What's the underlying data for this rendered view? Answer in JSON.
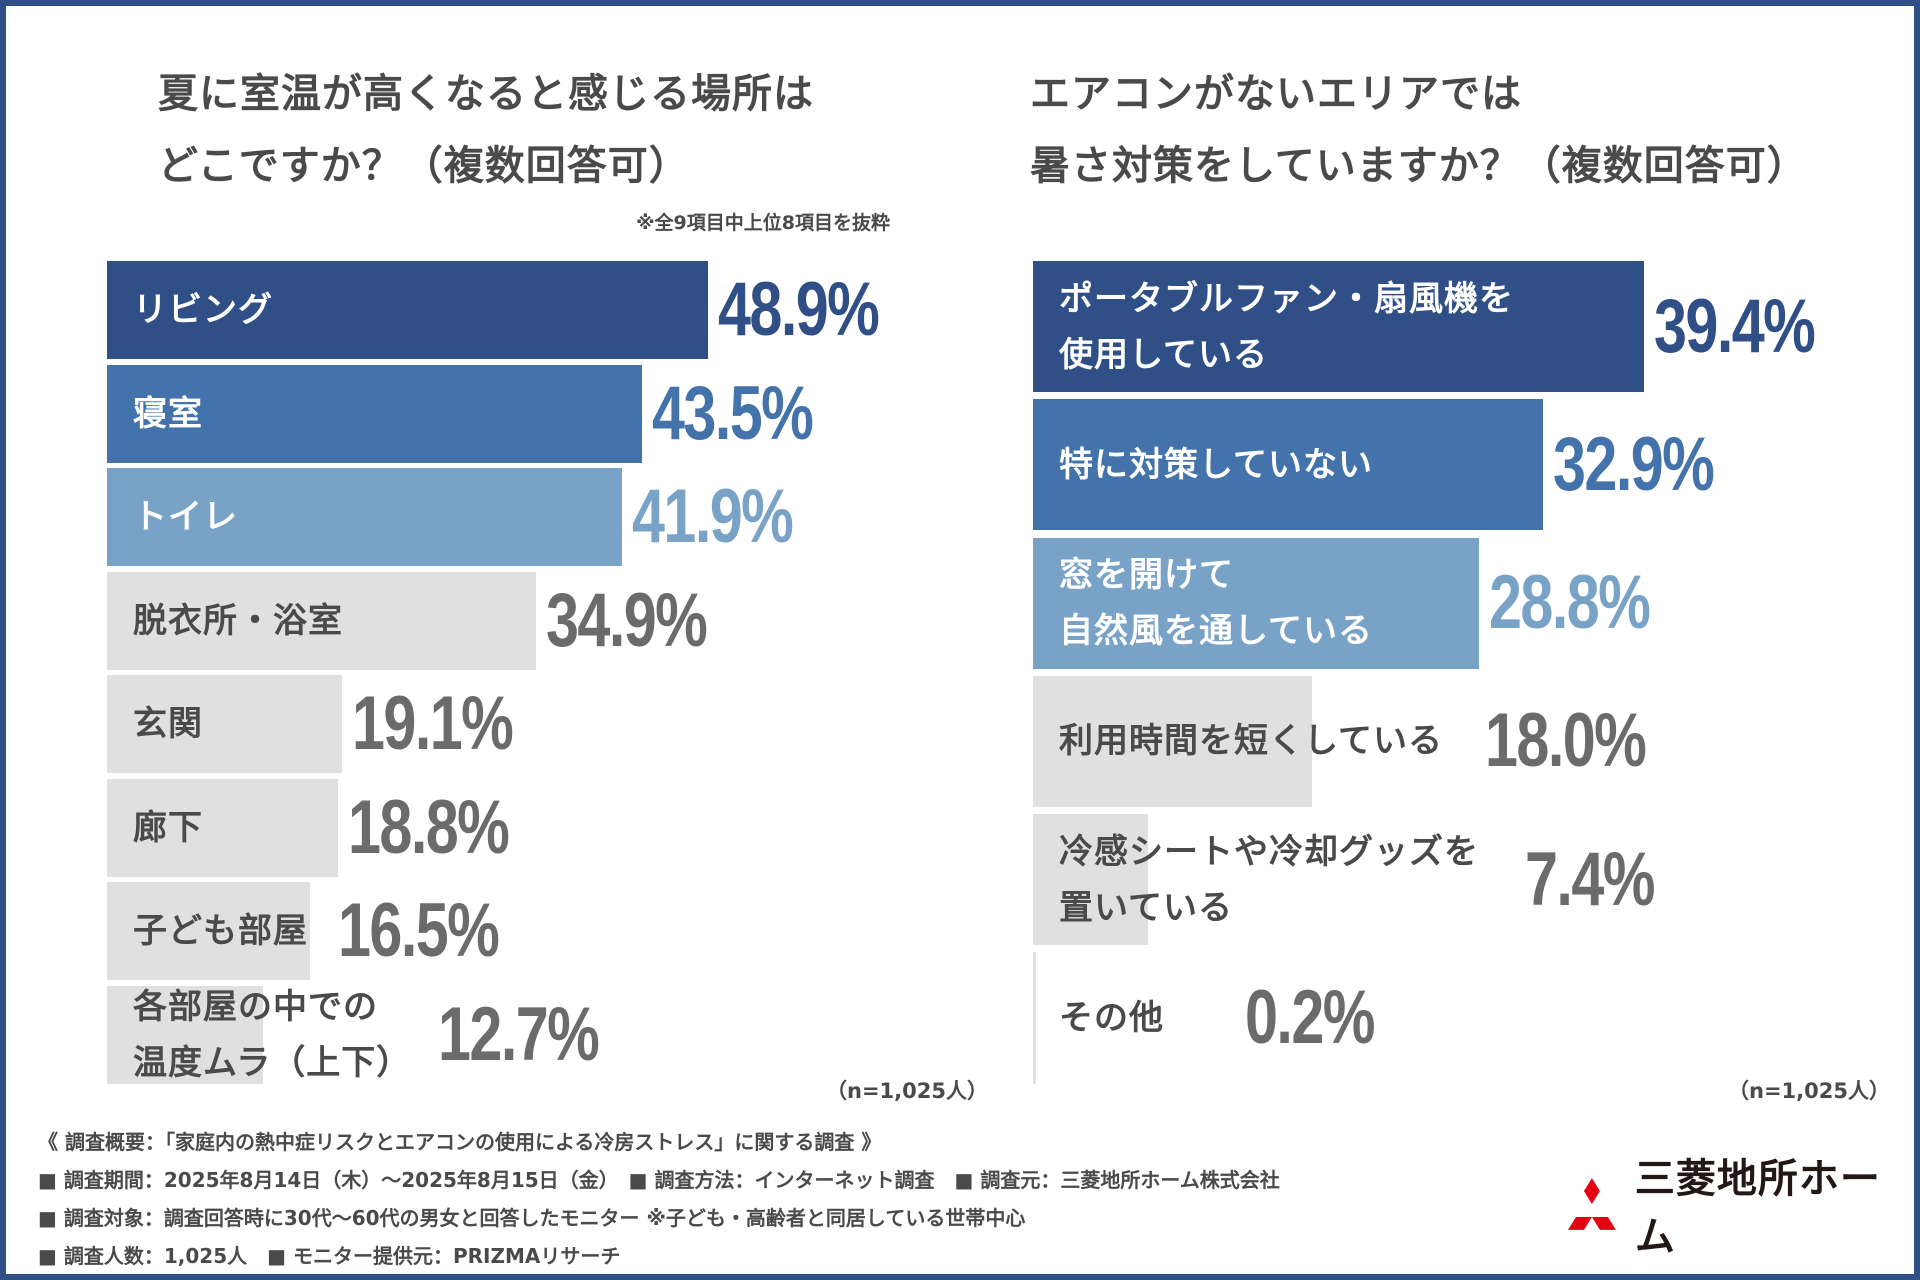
{
  "colors": {
    "frame": "#2e4f87",
    "rank1": "#2f4f86",
    "rank2": "#4473ab",
    "rank3": "#79a2c7",
    "other": "#e0e0e0",
    "text_dark": "#4a4a4a",
    "value_gray": "#6b6b6b",
    "logo_red": "#e60012"
  },
  "chart_data": [
    {
      "type": "bar",
      "orientation": "horizontal",
      "title": "夏に室温が高くなると感じる場所はどこですか？（複数回答可）",
      "title_lines": [
        "夏に室温が高くなると感じる場所は",
        "どこですか？（複数回答可）"
      ],
      "note": "※全9項目中上位8項目を抜粋",
      "categories": [
        "リビング",
        "寝室",
        "トイレ",
        "脱衣所・浴室",
        "玄関",
        "廊下",
        "子ども部屋",
        "各部屋の中での\n温度ムラ（上下）"
      ],
      "values": [
        48.9,
        43.5,
        41.9,
        34.9,
        19.1,
        18.8,
        16.5,
        12.7
      ],
      "value_labels": [
        "48.9%",
        "43.5%",
        "41.9%",
        "34.9%",
        "19.1%",
        "18.8%",
        "16.5%",
        "12.7%"
      ],
      "unit": "%",
      "sample": "（n=1,025人）",
      "xlabel": "",
      "ylabel": "",
      "grid": false,
      "legend": "none"
    },
    {
      "type": "bar",
      "orientation": "horizontal",
      "title": "エアコンがないエリアでは暑さ対策をしていますか？（複数回答可）",
      "title_lines": [
        "エアコンがないエリアでは",
        "暑さ対策をしていますか？（複数回答可）"
      ],
      "categories": [
        "ポータブルファン・扇風機を\n使用している",
        "特に対策していない",
        "窓を開けて\n自然風を通している",
        "利用時間を短くしている",
        "冷感シートや冷却グッズを\n置いている",
        "その他"
      ],
      "values": [
        39.4,
        32.9,
        28.8,
        18.0,
        7.4,
        0.2
      ],
      "value_labels": [
        "39.4%",
        "32.9%",
        "28.8%",
        "18.0%",
        "7.4%",
        "0.2%"
      ],
      "unit": "%",
      "sample": "（n=1,025人）",
      "xlabel": "",
      "ylabel": "",
      "grid": false,
      "legend": "none"
    }
  ],
  "footer": {
    "lines": [
      "《 調査概要：「家庭内の熱中症リスクとエアコンの使用による冷房ストレス」に関する調査 》",
      "■ 調査期間：2025年8月14日（木）～2025年8月15日（金）　■ 調査方法：インターネット調査　■ 調査元：三菱地所ホーム株式会社",
      "■ 調査対象：調査回答時に30代～60代の男女と回答したモニター ※子ども・高齢者と同居している世帯中心",
      "■ 調査人数：1,025人　■ モニター提供元：PRIZMAリサーチ"
    ]
  },
  "logo": {
    "icon": "three-diamonds-icon",
    "text": "三菱地所ホーム"
  }
}
